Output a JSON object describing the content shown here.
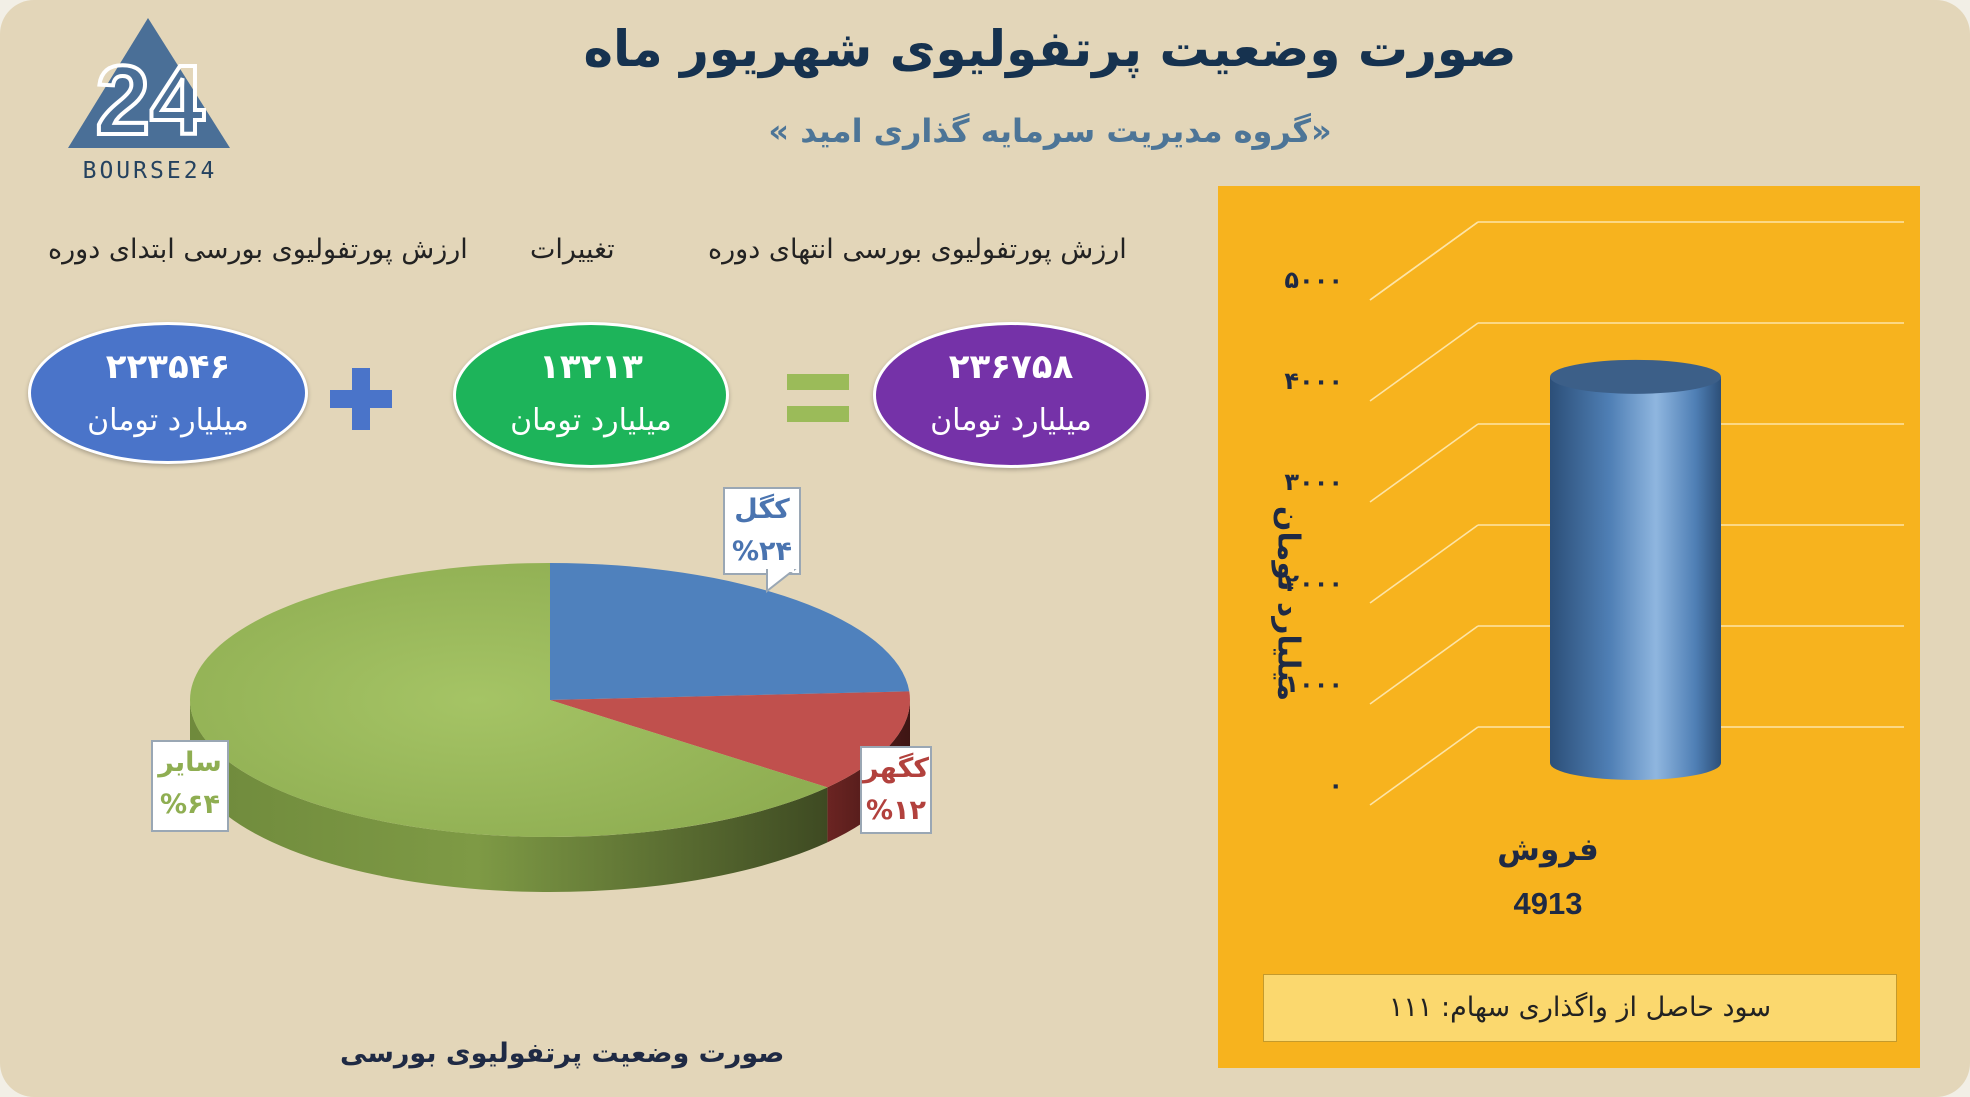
{
  "header": {
    "title": "صورت وضعیت پرتفولیوی شهریور ماه",
    "subtitle": "«گروه مدیریت سرمایه گذاری امید »"
  },
  "logo": {
    "text": "BOURSE24",
    "mark": "24"
  },
  "equation": {
    "start": {
      "label": "ارزش پورتفولیوی بورسی ابتدای دوره",
      "value": "۲۲۳۵۴۶",
      "unit": "میلیارد تومان",
      "color": "#4a74c9"
    },
    "change": {
      "label": "تغییرات",
      "value": "۱۳۲۱۳",
      "unit": "میلیارد تومان",
      "color": "#1db45a"
    },
    "end": {
      "label": "ارزش پورتفولیوی بورسی انتهای دوره",
      "value": "۲۳۶۷۵۸",
      "unit": "میلیارد تومان",
      "color": "#7532a8"
    },
    "plus_icon": "plus-icon",
    "equals_icon": "equals-icon"
  },
  "chart_data": [
    {
      "type": "pie",
      "title": "صورت وضعیت پرتفولیوی بورسی",
      "slices": [
        {
          "name": "کگل",
          "value": 24,
          "label": "%۲۴",
          "color": "#4f81bd"
        },
        {
          "name": "کگهر",
          "value": 12,
          "label": "%۱۲",
          "color": "#c0504d"
        },
        {
          "name": "سایر",
          "value": 64,
          "label": "%۶۴",
          "color": "#9bbb59"
        }
      ]
    },
    {
      "type": "bar",
      "categories": [
        "فروش"
      ],
      "values": [
        4913
      ],
      "data_label": "4913",
      "ylabel": "میلیارد تومان",
      "ylim": [
        0,
        5000
      ],
      "yticks": [
        0,
        1000,
        2000,
        3000,
        4000,
        5000
      ],
      "ytick_labels": [
        "۰",
        "۱۰۰۰",
        "۲۰۰۰",
        "۳۰۰۰",
        "۴۰۰۰",
        "۵۰۰۰"
      ],
      "grid": true,
      "bar_color": "#4f81bd",
      "background": "#f7b31e"
    }
  ],
  "profit": {
    "text": "سود حاصل از واگذاری سهام: ۱۱۱"
  }
}
